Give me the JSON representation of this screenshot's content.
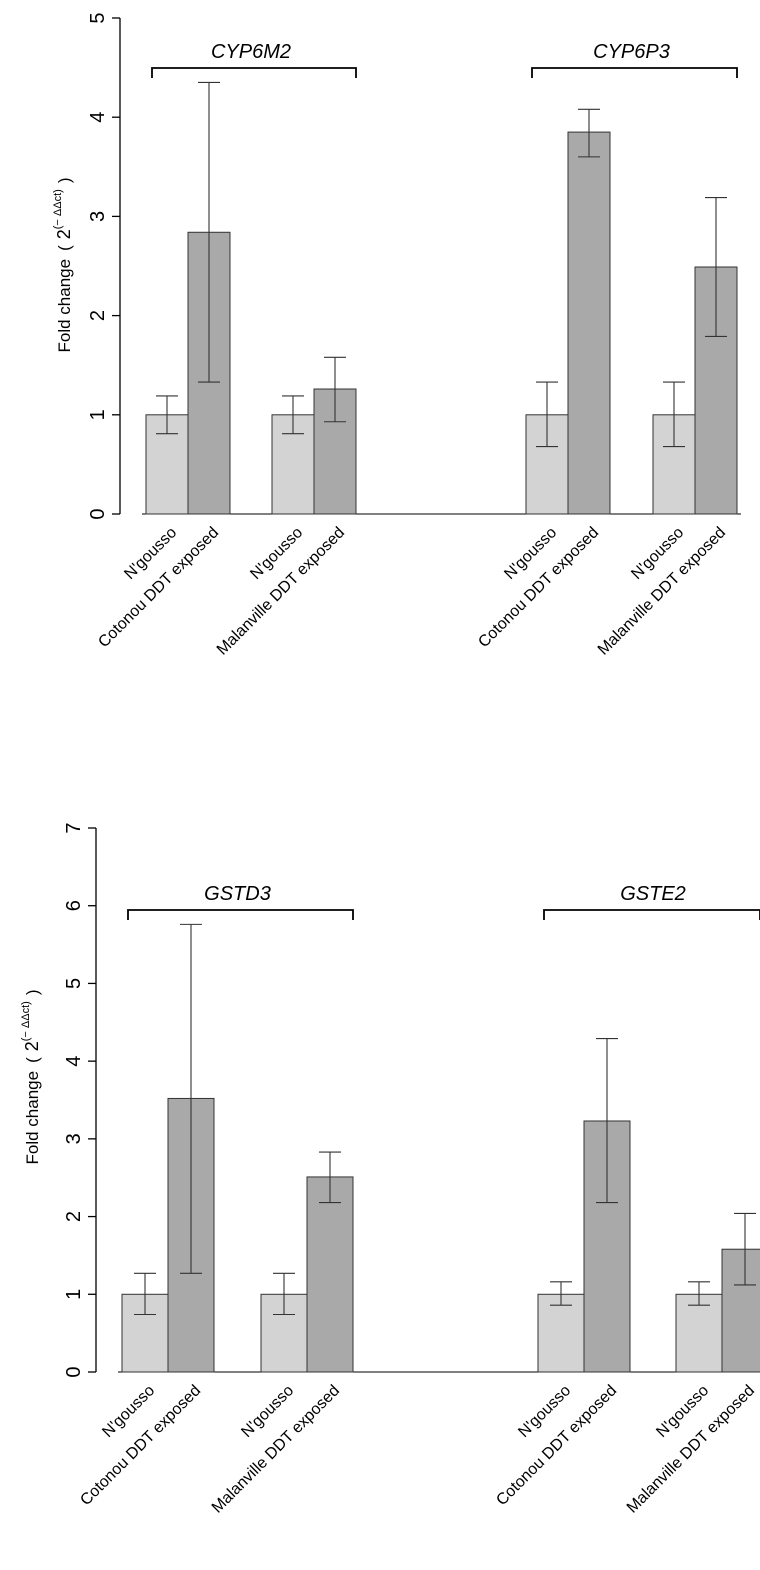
{
  "colors": {
    "control": "#d3d3d3",
    "exposed": "#a9a9a9",
    "stroke": "#333333"
  },
  "chart_data": [
    {
      "type": "bar",
      "ylabel": "Fold change",
      "ylabel_formula": "2",
      "ylabel_exponent": "(− ΔΔct)",
      "ylim": [
        0,
        5
      ],
      "yticks": [
        "0",
        "1",
        "2",
        "3",
        "4",
        "5"
      ],
      "groups": [
        {
          "gene": "CYP6M2",
          "pairs": [
            {
              "labels": [
                "N'gousso",
                "Cotonou DDT exposed"
              ],
              "values": [
                1.0,
                2.84
              ],
              "errors": [
                [
                  0.81,
                  1.19
                ],
                [
                  1.33,
                  4.35
                ]
              ]
            },
            {
              "labels": [
                "N'gousso",
                "Malanville DDT exposed"
              ],
              "values": [
                1.0,
                1.26
              ],
              "errors": [
                [
                  0.81,
                  1.19
                ],
                [
                  0.93,
                  1.58
                ]
              ]
            }
          ]
        },
        {
          "gene": "CYP6P3",
          "pairs": [
            {
              "labels": [
                "N'gousso",
                "Cotonou DDT exposed"
              ],
              "values": [
                1.0,
                3.85
              ],
              "errors": [
                [
                  0.68,
                  1.33
                ],
                [
                  3.6,
                  4.08
                ]
              ]
            },
            {
              "labels": [
                "N'gousso",
                "Malanville DDT exposed"
              ],
              "values": [
                1.0,
                2.49
              ],
              "errors": [
                [
                  0.68,
                  1.33
                ],
                [
                  1.79,
                  3.19
                ]
              ]
            }
          ]
        }
      ]
    },
    {
      "type": "bar",
      "ylabel": "Fold change",
      "ylabel_formula": "2",
      "ylabel_exponent": "(− ΔΔct)",
      "ylim": [
        0,
        7
      ],
      "yticks": [
        "0",
        "1",
        "2",
        "3",
        "4",
        "5",
        "6",
        "7"
      ],
      "groups": [
        {
          "gene": "GSTD3",
          "pairs": [
            {
              "labels": [
                "N'gousso",
                "Cotonou DDT exposed"
              ],
              "values": [
                1.0,
                3.52
              ],
              "errors": [
                [
                  0.74,
                  1.27
                ],
                [
                  1.27,
                  5.76
                ]
              ]
            },
            {
              "labels": [
                "N'gousso",
                "Malanville DDT exposed"
              ],
              "values": [
                1.0,
                2.51
              ],
              "errors": [
                [
                  0.74,
                  1.27
                ],
                [
                  2.18,
                  2.83
                ]
              ]
            }
          ]
        },
        {
          "gene": "GSTE2",
          "pairs": [
            {
              "labels": [
                "N'gousso",
                "Cotonou DDT exposed"
              ],
              "values": [
                1.0,
                3.23
              ],
              "errors": [
                [
                  0.86,
                  1.16
                ],
                [
                  2.18,
                  4.29
                ]
              ]
            },
            {
              "labels": [
                "N'gousso",
                "Malanville DDT exposed"
              ],
              "values": [
                1.0,
                1.58
              ],
              "errors": [
                [
                  0.86,
                  1.16
                ],
                [
                  1.12,
                  2.04
                ]
              ]
            }
          ]
        }
      ]
    }
  ]
}
